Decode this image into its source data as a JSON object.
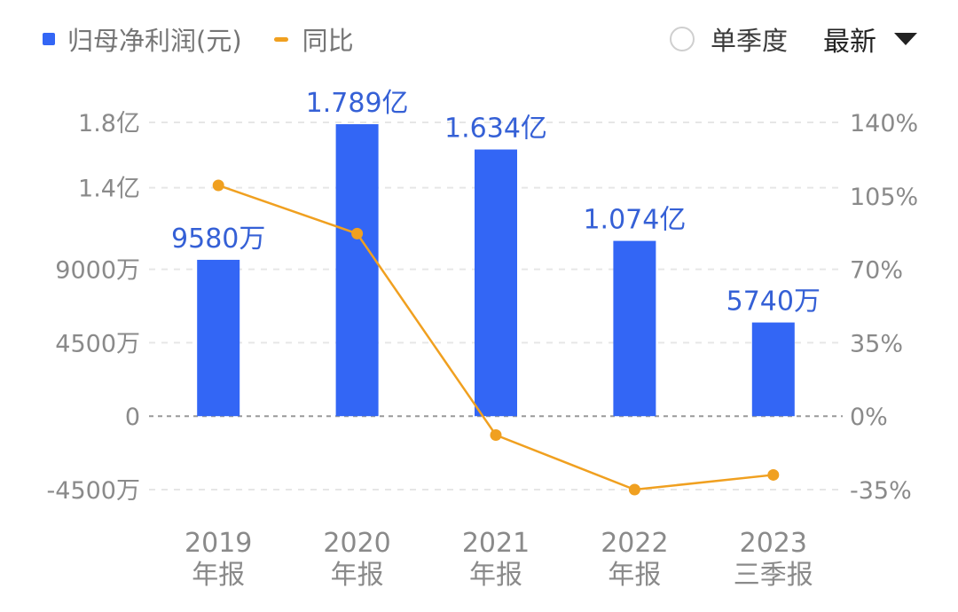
{
  "legend": {
    "bar_label": "归母净利润(元)",
    "line_label": "同比"
  },
  "controls": {
    "radio_label": "单季度",
    "dropdown_label": "最新"
  },
  "colors": {
    "bar": "#3366f5",
    "line": "#f0a020"
  },
  "chart_data": {
    "type": "bar",
    "categories": [
      [
        "2019",
        "年报"
      ],
      [
        "2020",
        "年报"
      ],
      [
        "2021",
        "年报"
      ],
      [
        "2022",
        "年报"
      ],
      [
        "2023",
        "三季报"
      ]
    ],
    "series": [
      {
        "name": "归母净利润(元)",
        "type": "bar",
        "axis": "left",
        "values": [
          95800000,
          178900000,
          163400000,
          107400000,
          57400000
        ],
        "labels": [
          "9580万",
          "1.789亿",
          "1.634亿",
          "1.074亿",
          "5740万"
        ]
      },
      {
        "name": "同比",
        "type": "line",
        "axis": "right",
        "values": [
          110,
          87,
          -9,
          -35,
          -28
        ]
      }
    ],
    "y_left": {
      "range": [
        -45000000,
        180000000
      ],
      "ticks": [
        -45000000,
        0,
        45000000,
        90000000,
        140000000,
        180000000
      ],
      "tick_labels": [
        "-4500万",
        "0",
        "4500万",
        "9000万",
        "1.4亿",
        "1.8亿"
      ]
    },
    "y_right": {
      "range": [
        -35,
        140
      ],
      "ticks": [
        -35,
        0,
        35,
        70,
        105,
        140
      ],
      "tick_labels": [
        "-35%",
        "0%",
        "35%",
        "70%",
        "105%",
        "140%"
      ]
    },
    "grid": true
  }
}
